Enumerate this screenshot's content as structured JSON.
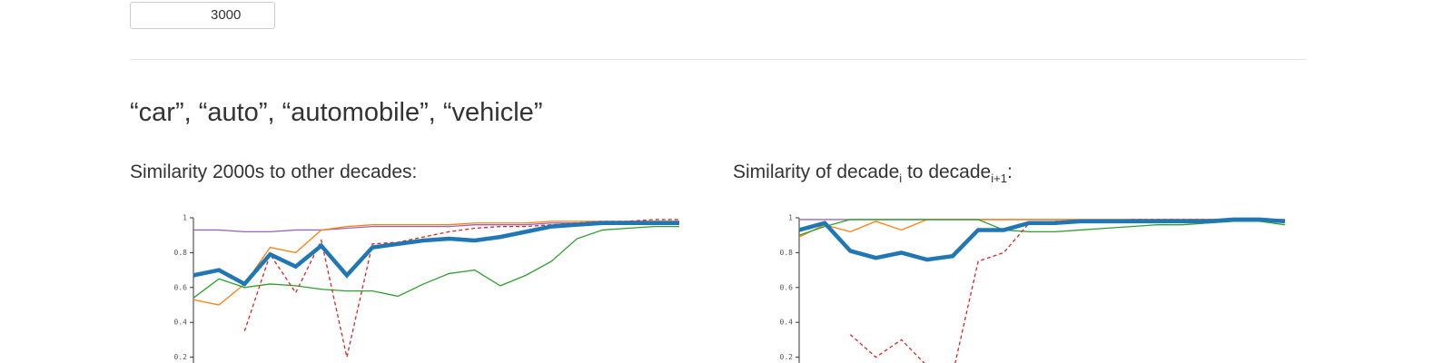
{
  "input": {
    "value": "3000"
  },
  "heading": "“car”, “auto”, “automobile”, “vehicle”",
  "chart_data": [
    {
      "type": "line",
      "title": [
        {
          "text": "Similarity 2000s to other decades:"
        }
      ],
      "categories": [
        null,
        null,
        null,
        null,
        null,
        null,
        null,
        null,
        null,
        null,
        null,
        null,
        null,
        null,
        null,
        null,
        null,
        null,
        null,
        null
      ],
      "ylim": [
        0,
        1
      ],
      "yticks": [
        0.2,
        0.4,
        0.6,
        0.8,
        1
      ],
      "series": [
        {
          "color": "#9467bd",
          "values": [
            0.93,
            0.93,
            0.92,
            0.92,
            0.93,
            0.93,
            0.94,
            0.95,
            0.95,
            0.95,
            0.95,
            0.96,
            0.96,
            0.96,
            0.97,
            0.97,
            0.97,
            0.98,
            0.98,
            0.98
          ]
        },
        {
          "color": "#ff7f0e",
          "values": [
            0.53,
            0.5,
            0.62,
            0.83,
            0.8,
            0.93,
            0.95,
            0.96,
            0.96,
            0.96,
            0.96,
            0.97,
            0.97,
            0.97,
            0.98,
            0.98,
            0.98,
            0.98,
            0.98,
            0.98
          ]
        },
        {
          "color": "#2ca02c",
          "values": [
            0.54,
            0.65,
            0.6,
            0.62,
            0.61,
            0.59,
            0.58,
            0.58,
            0.55,
            0.62,
            0.68,
            0.7,
            0.61,
            0.67,
            0.75,
            0.88,
            0.93,
            0.94,
            0.95,
            0.95
          ]
        },
        {
          "color": "#d62728",
          "dash": true,
          "values": [
            null,
            null,
            0.35,
            0.79,
            0.57,
            0.87,
            0.2,
            0.85,
            0.86,
            0.89,
            0.92,
            0.94,
            0.95,
            0.95,
            0.96,
            0.97,
            0.98,
            0.98,
            0.99,
            0.99
          ]
        },
        {
          "color": "#1f77b4",
          "thick": true,
          "values": [
            0.67,
            0.7,
            0.62,
            0.79,
            0.72,
            0.84,
            0.67,
            0.83,
            0.85,
            0.87,
            0.88,
            0.87,
            0.89,
            0.92,
            0.95,
            0.96,
            0.97,
            0.97,
            0.97,
            0.97
          ]
        }
      ]
    },
    {
      "type": "line",
      "title": [
        {
          "text": "Similarity of decade"
        },
        {
          "sub": "i"
        },
        {
          "text": " to decade"
        },
        {
          "sub": "i+1"
        },
        {
          "text": ":"
        }
      ],
      "categories": [
        null,
        null,
        null,
        null,
        null,
        null,
        null,
        null,
        null,
        null,
        null,
        null,
        null,
        null,
        null,
        null,
        null,
        null,
        null,
        null
      ],
      "ylim": [
        0,
        1
      ],
      "yticks": [
        0.2,
        0.4,
        0.6,
        0.8,
        1
      ],
      "series": [
        {
          "color": "#9467bd",
          "values": [
            0.99,
            0.99,
            0.99,
            0.99,
            0.99,
            0.99,
            0.99,
            0.99,
            0.99,
            0.99,
            0.99,
            0.99,
            0.99,
            0.99,
            0.99,
            0.99,
            0.99,
            0.99,
            0.99,
            0.99
          ]
        },
        {
          "color": "#ff7f0e",
          "values": [
            0.89,
            0.96,
            0.92,
            0.98,
            0.93,
            0.99,
            0.99,
            0.99,
            0.99,
            0.99,
            0.99,
            0.99,
            0.99,
            0.99,
            0.99,
            0.99,
            0.99,
            0.99,
            0.99,
            0.99
          ]
        },
        {
          "color": "#2ca02c",
          "values": [
            0.9,
            0.95,
            0.99,
            0.99,
            0.99,
            0.99,
            0.99,
            0.99,
            0.93,
            0.92,
            0.92,
            0.93,
            0.94,
            0.95,
            0.96,
            0.96,
            0.97,
            0.98,
            0.98,
            0.96
          ]
        },
        {
          "color": "#d62728",
          "dash": true,
          "values": [
            null,
            null,
            0.33,
            0.2,
            0.3,
            0.15,
            0.1,
            0.75,
            0.8,
            0.97,
            0.98,
            0.98,
            0.98,
            0.99,
            0.99,
            0.99,
            0.99,
            0.99,
            0.99,
            0.98
          ]
        },
        {
          "color": "#1f77b4",
          "thick": true,
          "values": [
            0.93,
            0.97,
            0.81,
            0.77,
            0.8,
            0.76,
            0.78,
            0.93,
            0.93,
            0.97,
            0.97,
            0.98,
            0.98,
            0.98,
            0.98,
            0.98,
            0.98,
            0.99,
            0.99,
            0.98
          ]
        }
      ]
    }
  ]
}
